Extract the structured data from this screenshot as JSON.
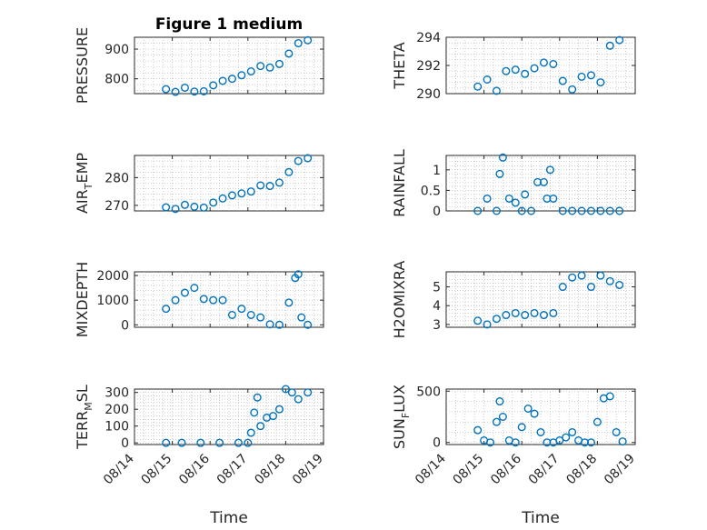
{
  "figure": {
    "title": "Figure 1 medium",
    "x_tick_labels": [
      "08/14",
      "08/15",
      "08/16",
      "08/17",
      "08/18",
      "08/19"
    ],
    "xlabel": "Time",
    "marker_color": "#0072BD"
  },
  "chart_data": [
    {
      "type": "scatter",
      "ylabel": "PRESSURE",
      "ylim": [
        750,
        940
      ],
      "yticks": [
        800,
        900
      ],
      "grid": true,
      "x": [
        "08/14 20:00",
        "08/15 02:00",
        "08/15 08:00",
        "08/15 14:00",
        "08/15 20:00",
        "08/16 02:00",
        "08/16 08:00",
        "08/16 14:00",
        "08/16 20:00",
        "08/17 02:00",
        "08/17 08:00",
        "08/17 14:00",
        "08/17 20:00",
        "08/18 02:00",
        "08/18 08:00",
        "08/18 14:00"
      ],
      "y": [
        765,
        756,
        770,
        757,
        758,
        778,
        793,
        800,
        812,
        825,
        843,
        838,
        850,
        885,
        920,
        930
      ]
    },
    {
      "type": "scatter",
      "ylabel": "THETA",
      "ylim": [
        290,
        294
      ],
      "yticks": [
        290,
        292,
        294
      ],
      "grid": true,
      "x": [
        "08/14 20:00",
        "08/15 02:00",
        "08/15 08:00",
        "08/15 14:00",
        "08/15 20:00",
        "08/16 02:00",
        "08/16 08:00",
        "08/16 14:00",
        "08/16 20:00",
        "08/17 02:00",
        "08/17 08:00",
        "08/17 14:00",
        "08/17 20:00",
        "08/18 02:00",
        "08/18 08:00",
        "08/18 14:00"
      ],
      "y": [
        290.5,
        291.0,
        290.2,
        291.6,
        291.7,
        291.4,
        291.8,
        292.2,
        292.1,
        290.9,
        290.3,
        291.2,
        291.3,
        290.8,
        293.4,
        293.8
      ]
    },
    {
      "type": "scatter",
      "ylabel": "AIR_TEMP",
      "ylim": [
        268,
        288
      ],
      "yticks": [
        270,
        280
      ],
      "grid": true,
      "x": [
        "08/14 20:00",
        "08/15 02:00",
        "08/15 08:00",
        "08/15 14:00",
        "08/15 20:00",
        "08/16 02:00",
        "08/16 08:00",
        "08/16 14:00",
        "08/16 20:00",
        "08/17 02:00",
        "08/17 08:00",
        "08/17 14:00",
        "08/17 20:00",
        "08/18 02:00",
        "08/18 08:00",
        "08/18 14:00"
      ],
      "y": [
        269.3,
        268.7,
        270.2,
        269.5,
        269.2,
        271.0,
        272.5,
        273.6,
        274.3,
        275.0,
        277.2,
        277.0,
        278.2,
        282.0,
        286.0,
        287.0
      ]
    },
    {
      "type": "scatter",
      "ylabel": "RAINFALL",
      "ylim": [
        0,
        1.35
      ],
      "yticks": [
        0,
        0.5,
        1
      ],
      "grid": true,
      "x": [
        "08/14 20:00",
        "08/15 02:00",
        "08/15 08:00",
        "08/15 10:00",
        "08/15 12:00",
        "08/15 16:00",
        "08/15 20:00",
        "08/16 00:00",
        "08/16 02:00",
        "08/16 06:00",
        "08/16 10:00",
        "08/16 14:00",
        "08/16 16:00",
        "08/16 18:00",
        "08/16 20:00",
        "08/17 02:00",
        "08/17 08:00",
        "08/17 14:00",
        "08/17 20:00",
        "08/18 02:00",
        "08/18 08:00",
        "08/18 14:00"
      ],
      "y": [
        0,
        0.3,
        0,
        0.9,
        1.3,
        0.3,
        0.2,
        0,
        0.4,
        0,
        0.7,
        0.7,
        0.3,
        1.0,
        0.3,
        0,
        0,
        0,
        0,
        0,
        0,
        0
      ]
    },
    {
      "type": "scatter",
      "ylabel": "MIXDEPTH",
      "ylim": [
        -100,
        2150
      ],
      "yticks": [
        0,
        1000,
        2000
      ],
      "grid": true,
      "x": [
        "08/14 20:00",
        "08/15 02:00",
        "08/15 08:00",
        "08/15 14:00",
        "08/15 20:00",
        "08/16 02:00",
        "08/16 08:00",
        "08/16 14:00",
        "08/16 20:00",
        "08/17 02:00",
        "08/17 08:00",
        "08/17 14:00",
        "08/17 20:00",
        "08/18 02:00",
        "08/18 06:00",
        "08/18 08:00",
        "08/18 10:00",
        "08/18 14:00"
      ],
      "y": [
        650,
        1000,
        1300,
        1500,
        1050,
        1000,
        1000,
        400,
        650,
        400,
        300,
        20,
        0,
        900,
        1900,
        2050,
        300,
        0
      ]
    },
    {
      "type": "scatter",
      "ylabel": "H2OMIXRA",
      "ylim": [
        2.85,
        5.8
      ],
      "yticks": [
        3,
        4,
        5
      ],
      "grid": true,
      "x": [
        "08/14 20:00",
        "08/15 02:00",
        "08/15 08:00",
        "08/15 14:00",
        "08/15 20:00",
        "08/16 02:00",
        "08/16 08:00",
        "08/16 14:00",
        "08/16 20:00",
        "08/17 02:00",
        "08/17 08:00",
        "08/17 14:00",
        "08/17 20:00",
        "08/18 02:00",
        "08/18 08:00",
        "08/18 14:00"
      ],
      "y": [
        3.2,
        3.0,
        3.3,
        3.5,
        3.6,
        3.5,
        3.6,
        3.5,
        3.6,
        5.0,
        5.5,
        5.6,
        5.0,
        5.6,
        5.3,
        5.1
      ]
    },
    {
      "type": "scatter",
      "ylabel": "TERR_MSL",
      "ylim": [
        -10,
        320
      ],
      "yticks": [
        0,
        100,
        200,
        300
      ],
      "grid": true,
      "x": [
        "08/14 20:00",
        "08/15 06:00",
        "08/15 18:00",
        "08/16 06:00",
        "08/16 18:00",
        "08/17 00:00",
        "08/17 02:00",
        "08/17 04:00",
        "08/17 06:00",
        "08/17 08:00",
        "08/17 12:00",
        "08/17 16:00",
        "08/17 20:00",
        "08/18 00:00",
        "08/18 04:00",
        "08/18 08:00",
        "08/18 14:00"
      ],
      "y": [
        0,
        0,
        0,
        0,
        0,
        0,
        60,
        180,
        270,
        100,
        150,
        160,
        200,
        320,
        300,
        260,
        300
      ]
    },
    {
      "type": "scatter",
      "ylabel": "SUN_FLUX",
      "ylim": [
        -20,
        520
      ],
      "yticks": [
        0,
        500
      ],
      "grid": true,
      "x": [
        "08/14 20:00",
        "08/15 00:00",
        "08/15 04:00",
        "08/15 08:00",
        "08/15 10:00",
        "08/15 12:00",
        "08/15 16:00",
        "08/15 20:00",
        "08/16 00:00",
        "08/16 04:00",
        "08/16 08:00",
        "08/16 12:00",
        "08/16 16:00",
        "08/16 20:00",
        "08/17 00:00",
        "08/17 04:00",
        "08/17 08:00",
        "08/17 12:00",
        "08/17 16:00",
        "08/17 20:00",
        "08/18 00:00",
        "08/18 04:00",
        "08/18 08:00",
        "08/18 12:00",
        "08/18 16:00"
      ],
      "y": [
        120,
        20,
        0,
        200,
        400,
        250,
        20,
        0,
        150,
        330,
        280,
        100,
        0,
        0,
        20,
        50,
        100,
        20,
        0,
        0,
        200,
        430,
        450,
        100,
        10
      ]
    }
  ]
}
